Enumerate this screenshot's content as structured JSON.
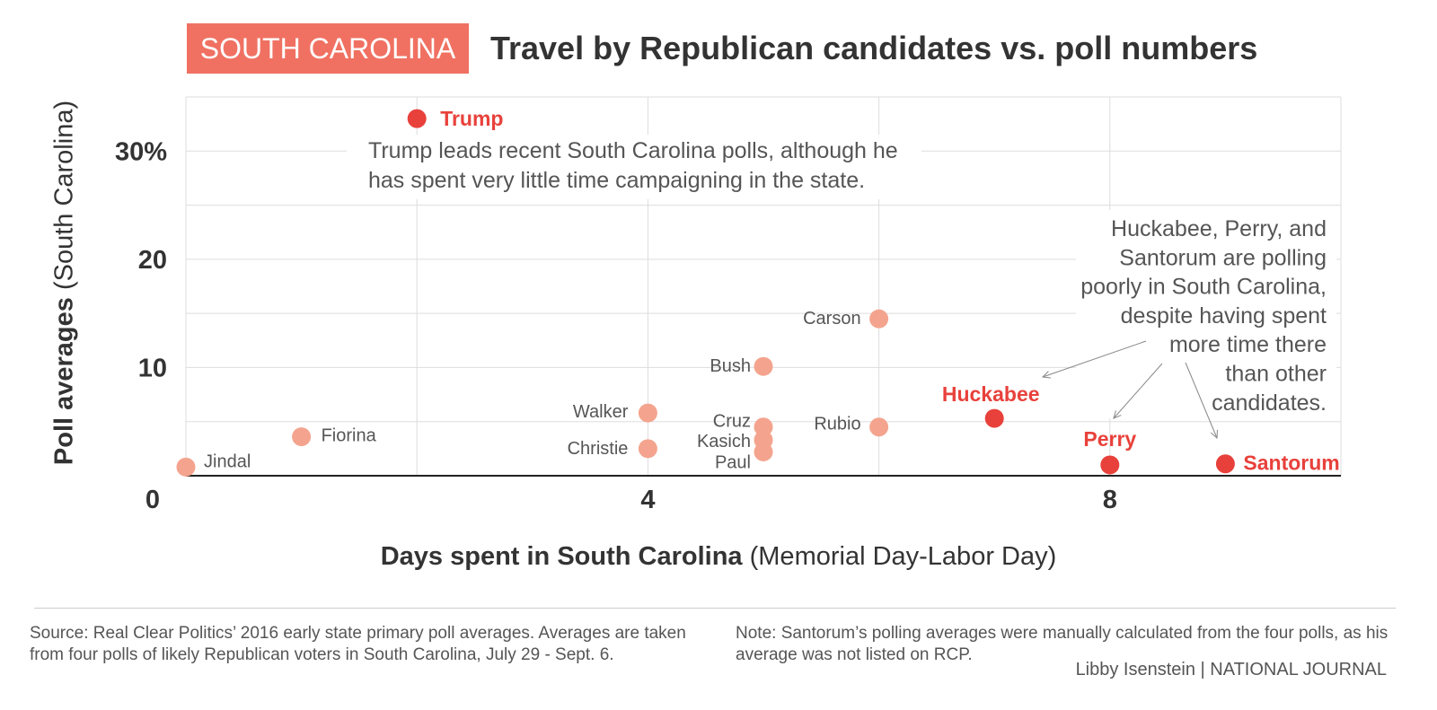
{
  "header": {
    "badge": "SOUTH CAROLINA",
    "title": "Travel by Republican candidates vs. poll numbers"
  },
  "chart_data": {
    "type": "scatter",
    "title": "Travel by Republican candidates vs. poll numbers",
    "xlabel_bold": "Days spent in South Carolina",
    "xlabel_rest": " (Memorial Day-Labor Day)",
    "ylabel_bold": "Poll averages",
    "ylabel_rest": " (South Carolina)",
    "xlim": [
      0,
      10
    ],
    "ylim": [
      0,
      35
    ],
    "x_ticks": [
      {
        "value": 0,
        "label": "0"
      },
      {
        "value": 4,
        "label": "4"
      },
      {
        "value": 8,
        "label": "8"
      }
    ],
    "y_ticks": [
      {
        "value": 10,
        "label": "10"
      },
      {
        "value": 20,
        "label": "20"
      },
      {
        "value": 30,
        "label": "30%"
      }
    ],
    "grid": true,
    "colors": {
      "highlight": "#e8413b",
      "other": "#f4a48e",
      "grid": "#dddddd",
      "badge": "#f07162"
    },
    "points": [
      {
        "name": "Trump",
        "x": 2,
        "y": 33,
        "highlight": true
      },
      {
        "name": "Carson",
        "x": 6,
        "y": 14.5,
        "highlight": false
      },
      {
        "name": "Bush",
        "x": 5,
        "y": 10.1,
        "highlight": false
      },
      {
        "name": "Walker",
        "x": 4,
        "y": 5.8,
        "highlight": false
      },
      {
        "name": "Cruz",
        "x": 5,
        "y": 4.5,
        "highlight": false
      },
      {
        "name": "Kasich",
        "x": 5,
        "y": 3.3,
        "highlight": false
      },
      {
        "name": "Paul",
        "x": 5,
        "y": 2.2,
        "highlight": false
      },
      {
        "name": "Christie",
        "x": 4,
        "y": 2.5,
        "highlight": false
      },
      {
        "name": "Rubio",
        "x": 6,
        "y": 4.5,
        "highlight": false
      },
      {
        "name": "Fiorina",
        "x": 1,
        "y": 3.6,
        "highlight": false
      },
      {
        "name": "Jindal",
        "x": 0,
        "y": 0.8,
        "highlight": false
      },
      {
        "name": "Huckabee",
        "x": 7,
        "y": 5.3,
        "highlight": true
      },
      {
        "name": "Perry",
        "x": 8,
        "y": 1,
        "highlight": true
      },
      {
        "name": "Santorum",
        "x": 9,
        "y": 1.1,
        "highlight": true
      }
    ],
    "annotations": [
      {
        "lines": [
          "Trump leads recent South Carolina polls, although he",
          "has spent very little time campaigning in the state."
        ]
      },
      {
        "lines": [
          "Huckabee, Perry, and",
          "Santorum are polling",
          "poorly in South Carolina,",
          "despite having spent",
          "more time there",
          "than other",
          "candidates."
        ]
      }
    ]
  },
  "footer": {
    "source": "Source: Real Clear Politics’ 2016 early state primary poll averages. Averages are taken from four polls of likely Republican voters in South Carolina, July 29 - Sept. 6.",
    "note": "Note: Santorum’s polling averages were manually calculated from the four polls, as his average was not listed on RCP.",
    "credit": "Libby Isenstein | NATIONAL JOURNAL"
  }
}
